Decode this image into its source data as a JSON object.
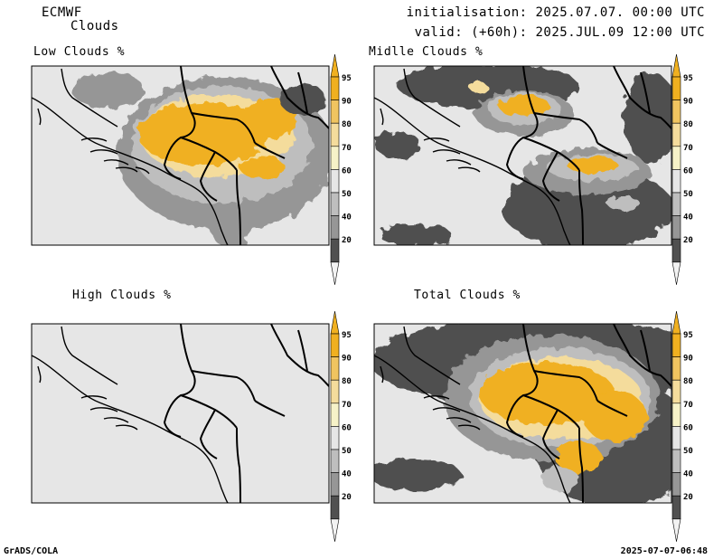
{
  "header": {
    "model": "ECMWF",
    "variable": "Clouds",
    "init": "initialisation: 2025.07.07. 00:00 UTC",
    "valid": "valid: (+60h): 2025.JUL.09 12:00 UTC"
  },
  "footer": {
    "software": "GrADS/COLA",
    "timestamp": "2025-07-07-06:48"
  },
  "colorbar": {
    "ticks": [
      "95",
      "90",
      "80",
      "70",
      "60",
      "50",
      "40",
      "20"
    ],
    "colors": [
      "#f0b020",
      "#f0c460",
      "#f4dc9c",
      "#f6f2c8",
      "#e6e6e6",
      "#bebebe",
      "#969696",
      "#505050"
    ],
    "arrow_top": "#f0b020",
    "arrow_bottom": "#f2f2f2"
  },
  "panels": [
    {
      "title": "Low Clouds %",
      "key": "low"
    },
    {
      "title": "Midlle Clouds %",
      "key": "mid"
    },
    {
      "title": "High Clouds %",
      "key": "high"
    },
    {
      "title": "Total Clouds %",
      "key": "total"
    }
  ],
  "map": {
    "background": "#e6e6e6",
    "border": "#000000"
  }
}
